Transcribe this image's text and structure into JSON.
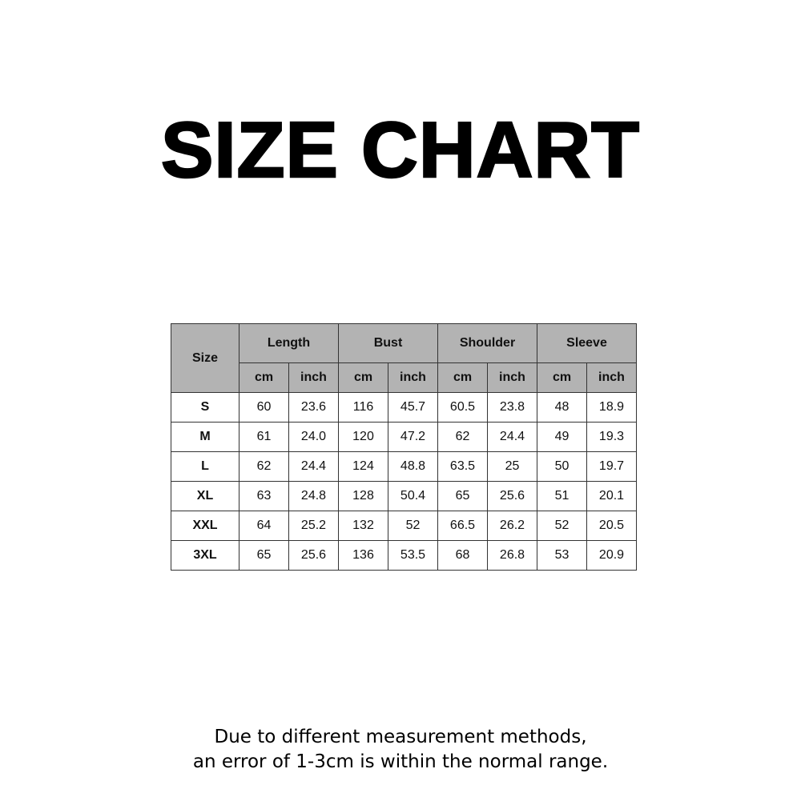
{
  "title": "SIZE CHART",
  "table": {
    "size_header": "Size",
    "groups": [
      "Length",
      "Bust",
      "Shoulder",
      "Sleeve"
    ],
    "units": [
      "cm",
      "inch"
    ],
    "rows": [
      [
        "S",
        "60",
        "23.6",
        "116",
        "45.7",
        "60.5",
        "23.8",
        "48",
        "18.9"
      ],
      [
        "M",
        "61",
        "24.0",
        "120",
        "47.2",
        "62",
        "24.4",
        "49",
        "19.3"
      ],
      [
        "L",
        "62",
        "24.4",
        "124",
        "48.8",
        "63.5",
        "25",
        "50",
        "19.7"
      ],
      [
        "XL",
        "63",
        "24.8",
        "128",
        "50.4",
        "65",
        "25.6",
        "51",
        "20.1"
      ],
      [
        "XXL",
        "64",
        "25.2",
        "132",
        "52",
        "66.5",
        "26.2",
        "52",
        "20.5"
      ],
      [
        "3XL",
        "65",
        "25.6",
        "136",
        "53.5",
        "68",
        "26.8",
        "53",
        "20.9"
      ]
    ],
    "header_color": "#b3b3b3"
  },
  "note": {
    "line1": "Due to different measurement methods,",
    "line2": "an error of 1-3cm is within the normal range."
  }
}
